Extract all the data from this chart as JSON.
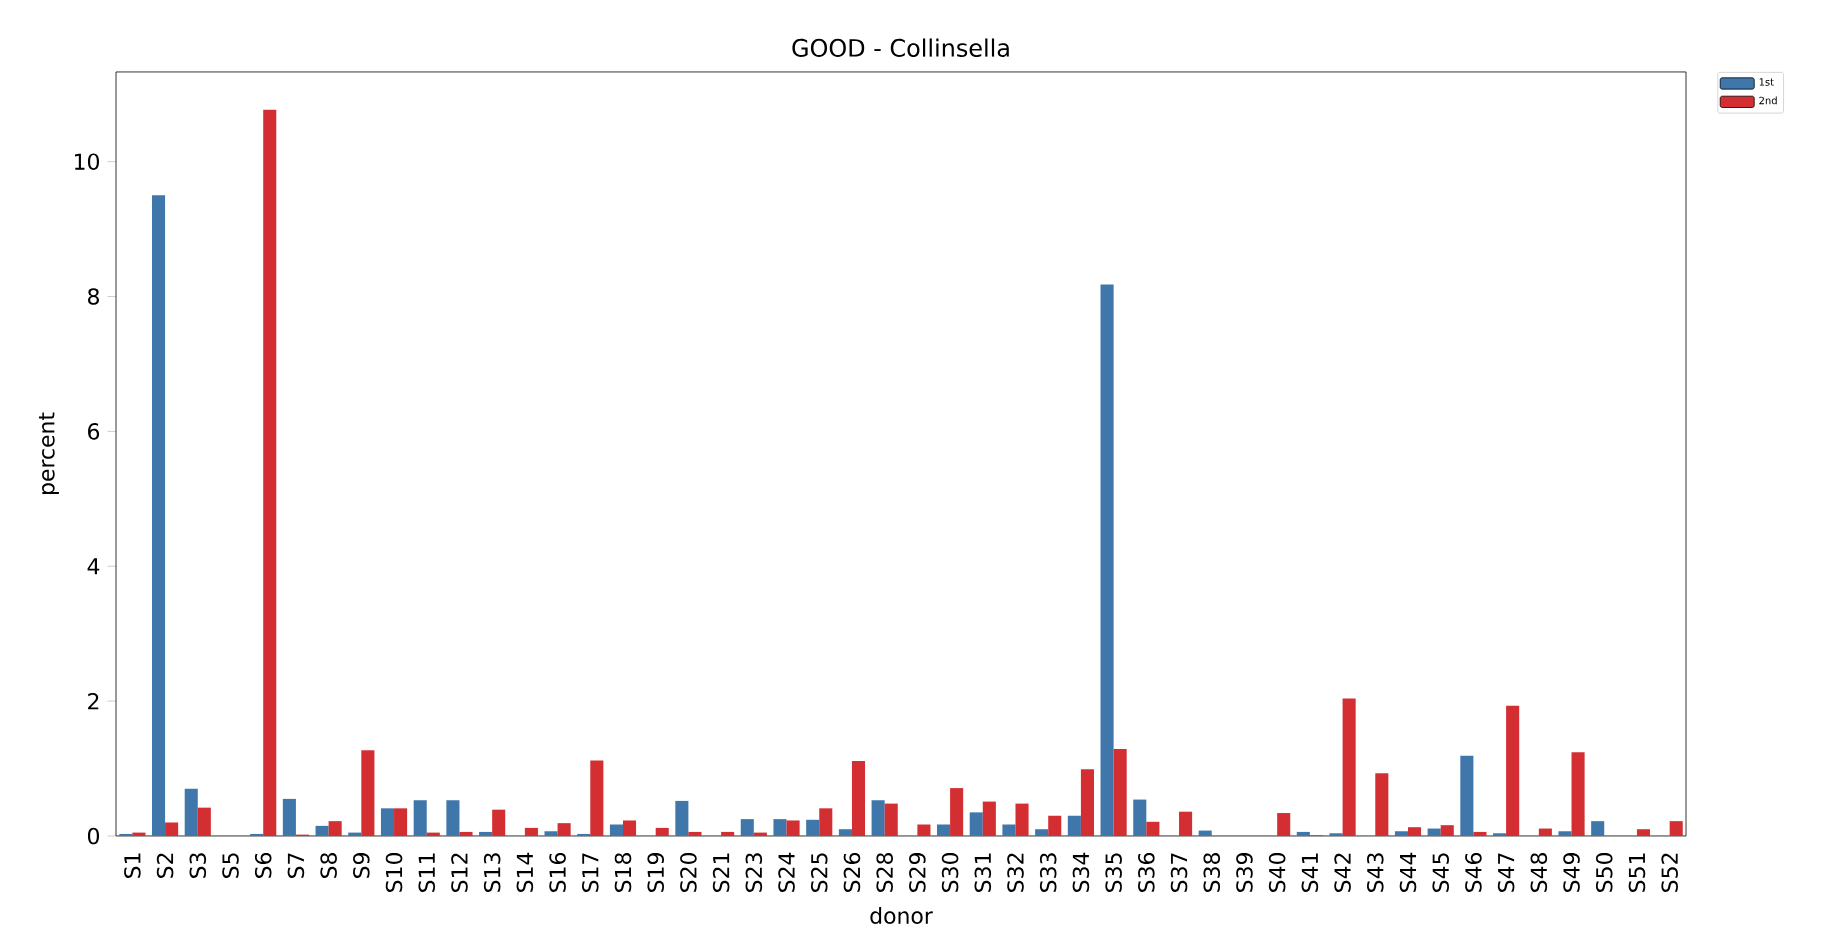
{
  "chart_data": {
    "type": "bar",
    "title": "GOOD - Collinsella",
    "xlabel": "donor",
    "ylabel": "percent",
    "categories": [
      "S1",
      "S2",
      "S3",
      "S5",
      "S6",
      "S7",
      "S8",
      "S9",
      "S10",
      "S11",
      "S12",
      "S13",
      "S14",
      "S16",
      "S17",
      "S18",
      "S19",
      "S20",
      "S21",
      "S23",
      "S24",
      "S25",
      "S26",
      "S28",
      "S29",
      "S30",
      "S31",
      "S32",
      "S33",
      "S34",
      "S35",
      "S36",
      "S37",
      "S38",
      "S39",
      "S40",
      "S41",
      "S42",
      "S43",
      "S44",
      "S45",
      "S46",
      "S47",
      "S48",
      "S49",
      "S50",
      "S51",
      "S52"
    ],
    "series": [
      {
        "name": "1st",
        "color": "#3f77ab",
        "values": [
          0.03,
          9.5,
          0.7,
          0,
          0.03,
          0.55,
          0.15,
          0.05,
          0.41,
          0.53,
          0.53,
          0.06,
          0,
          0.07,
          0.03,
          0.17,
          0,
          0.52,
          0,
          0.25,
          0.25,
          0.24,
          0.1,
          0.53,
          0,
          0.17,
          0.35,
          0.17,
          0.1,
          0.3,
          8.18,
          0.54,
          0,
          0.08,
          0,
          0,
          0.06,
          0.04,
          0,
          0.07,
          0.11,
          1.19,
          0.04,
          0,
          0.07,
          0.22,
          0,
          0
        ]
      },
      {
        "name": "2nd",
        "color": "#d32f33",
        "values": [
          0.05,
          0.2,
          0.42,
          0,
          10.77,
          0.02,
          0.22,
          1.27,
          0.41,
          0.05,
          0.06,
          0.39,
          0.12,
          0.19,
          1.12,
          0.23,
          0.12,
          0.06,
          0.06,
          0.05,
          0.23,
          0.41,
          1.11,
          0.48,
          0.17,
          0.71,
          0.51,
          0.48,
          0.3,
          0.99,
          1.29,
          0.21,
          0.36,
          0,
          0,
          0.34,
          0.01,
          2.04,
          0.93,
          0.13,
          0.16,
          0.06,
          1.93,
          0.11,
          1.24,
          0,
          0.1,
          0.22
        ]
      }
    ],
    "ylim": [
      0,
      11.33
    ],
    "yticks": [
      0,
      2,
      4,
      6,
      8,
      10
    ],
    "legend": "top right"
  }
}
